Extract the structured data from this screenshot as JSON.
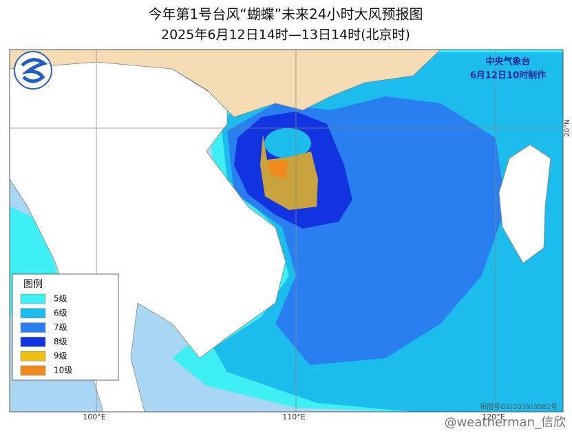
{
  "title": "今年第1号台风“蝴蝶”未来24小时大风预报图",
  "subtitle": "2025年6月12日14时—13日14时(北京时)",
  "issuer": {
    "name": "中央气象台",
    "time": "6月12日10时制作"
  },
  "legend": {
    "title": "图例",
    "items": [
      {
        "label": "5级",
        "color": "#3ef0f4"
      },
      {
        "label": "6级",
        "color": "#1cbcec"
      },
      {
        "label": "7级",
        "color": "#2a7ff0"
      },
      {
        "label": "8级",
        "color": "#1233e0"
      },
      {
        "label": "9级",
        "color": "#f0c010"
      },
      {
        "label": "10级",
        "color": "#f08a1c"
      }
    ]
  },
  "axes": {
    "longitude": [
      "100°E",
      "110°E",
      "120°E"
    ],
    "latitude": [
      "20°N"
    ]
  },
  "credit": "审图号GS(2019)3082号",
  "watermark": "@weatherman_信欣"
}
